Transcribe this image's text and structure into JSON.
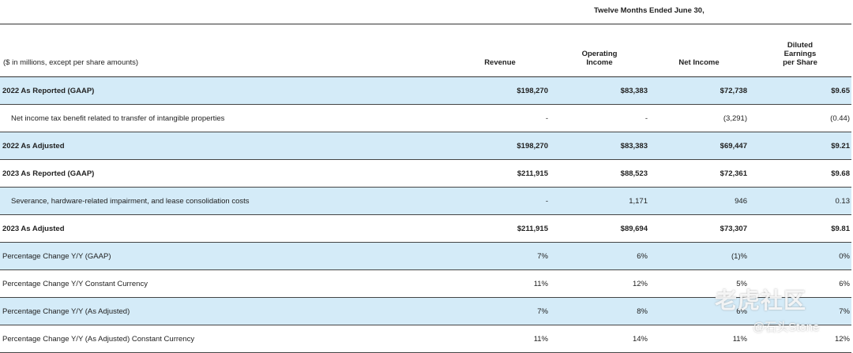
{
  "period_header": "Twelve Months Ended June 30,",
  "columns": {
    "label": "($ in millions, except per share amounts)",
    "revenue": "Revenue",
    "operating_income": "Operating\nIncome",
    "net_income": "Net Income",
    "eps": "Diluted\nEarnings\nper Share"
  },
  "rows": [
    {
      "label": "2022 As Reported (GAAP)",
      "revenue": "$198,270",
      "operating_income": "$83,383",
      "net_income": "$72,738",
      "eps": "$9.65"
    },
    {
      "label": "Net income tax benefit related to transfer of intangible properties",
      "revenue": "-",
      "operating_income": "-",
      "net_income": "(3,291)",
      "eps": "(0.44)"
    },
    {
      "label": "2022 As Adjusted",
      "revenue": "$198,270",
      "operating_income": "$83,383",
      "net_income": "$69,447",
      "eps": "$9.21"
    },
    {
      "label": "2023 As Reported (GAAP)",
      "revenue": "$211,915",
      "operating_income": "$88,523",
      "net_income": "$72,361",
      "eps": "$9.68"
    },
    {
      "label": "Severance, hardware-related impairment, and lease consolidation costs",
      "revenue": "-",
      "operating_income": "1,171",
      "net_income": "946",
      "eps": "0.13"
    },
    {
      "label": "2023 As Adjusted",
      "revenue": "$211,915",
      "operating_income": "$89,694",
      "net_income": "$73,307",
      "eps": "$9.81"
    },
    {
      "label": "Percentage Change Y/Y (GAAP)",
      "revenue": "7%",
      "operating_income": "6%",
      "net_income": "(1)%",
      "eps": "0%"
    },
    {
      "label": "Percentage Change Y/Y Constant Currency",
      "revenue": "11%",
      "operating_income": "12%",
      "net_income": "5%",
      "eps": "6%"
    },
    {
      "label": "Percentage Change Y/Y (As Adjusted)",
      "revenue": "7%",
      "operating_income": "8%",
      "net_income": "6%",
      "eps": "7%"
    },
    {
      "label": "Percentage Change Y/Y (As Adjusted) Constant Currency",
      "revenue": "11%",
      "operating_income": "14%",
      "net_income": "11%",
      "eps": "12%"
    }
  ],
  "watermark": {
    "logo_text": "老虎社区",
    "handle": "@石头Stone"
  },
  "colors": {
    "row_shade": "#d4ebf8",
    "rule": "#333333"
  }
}
